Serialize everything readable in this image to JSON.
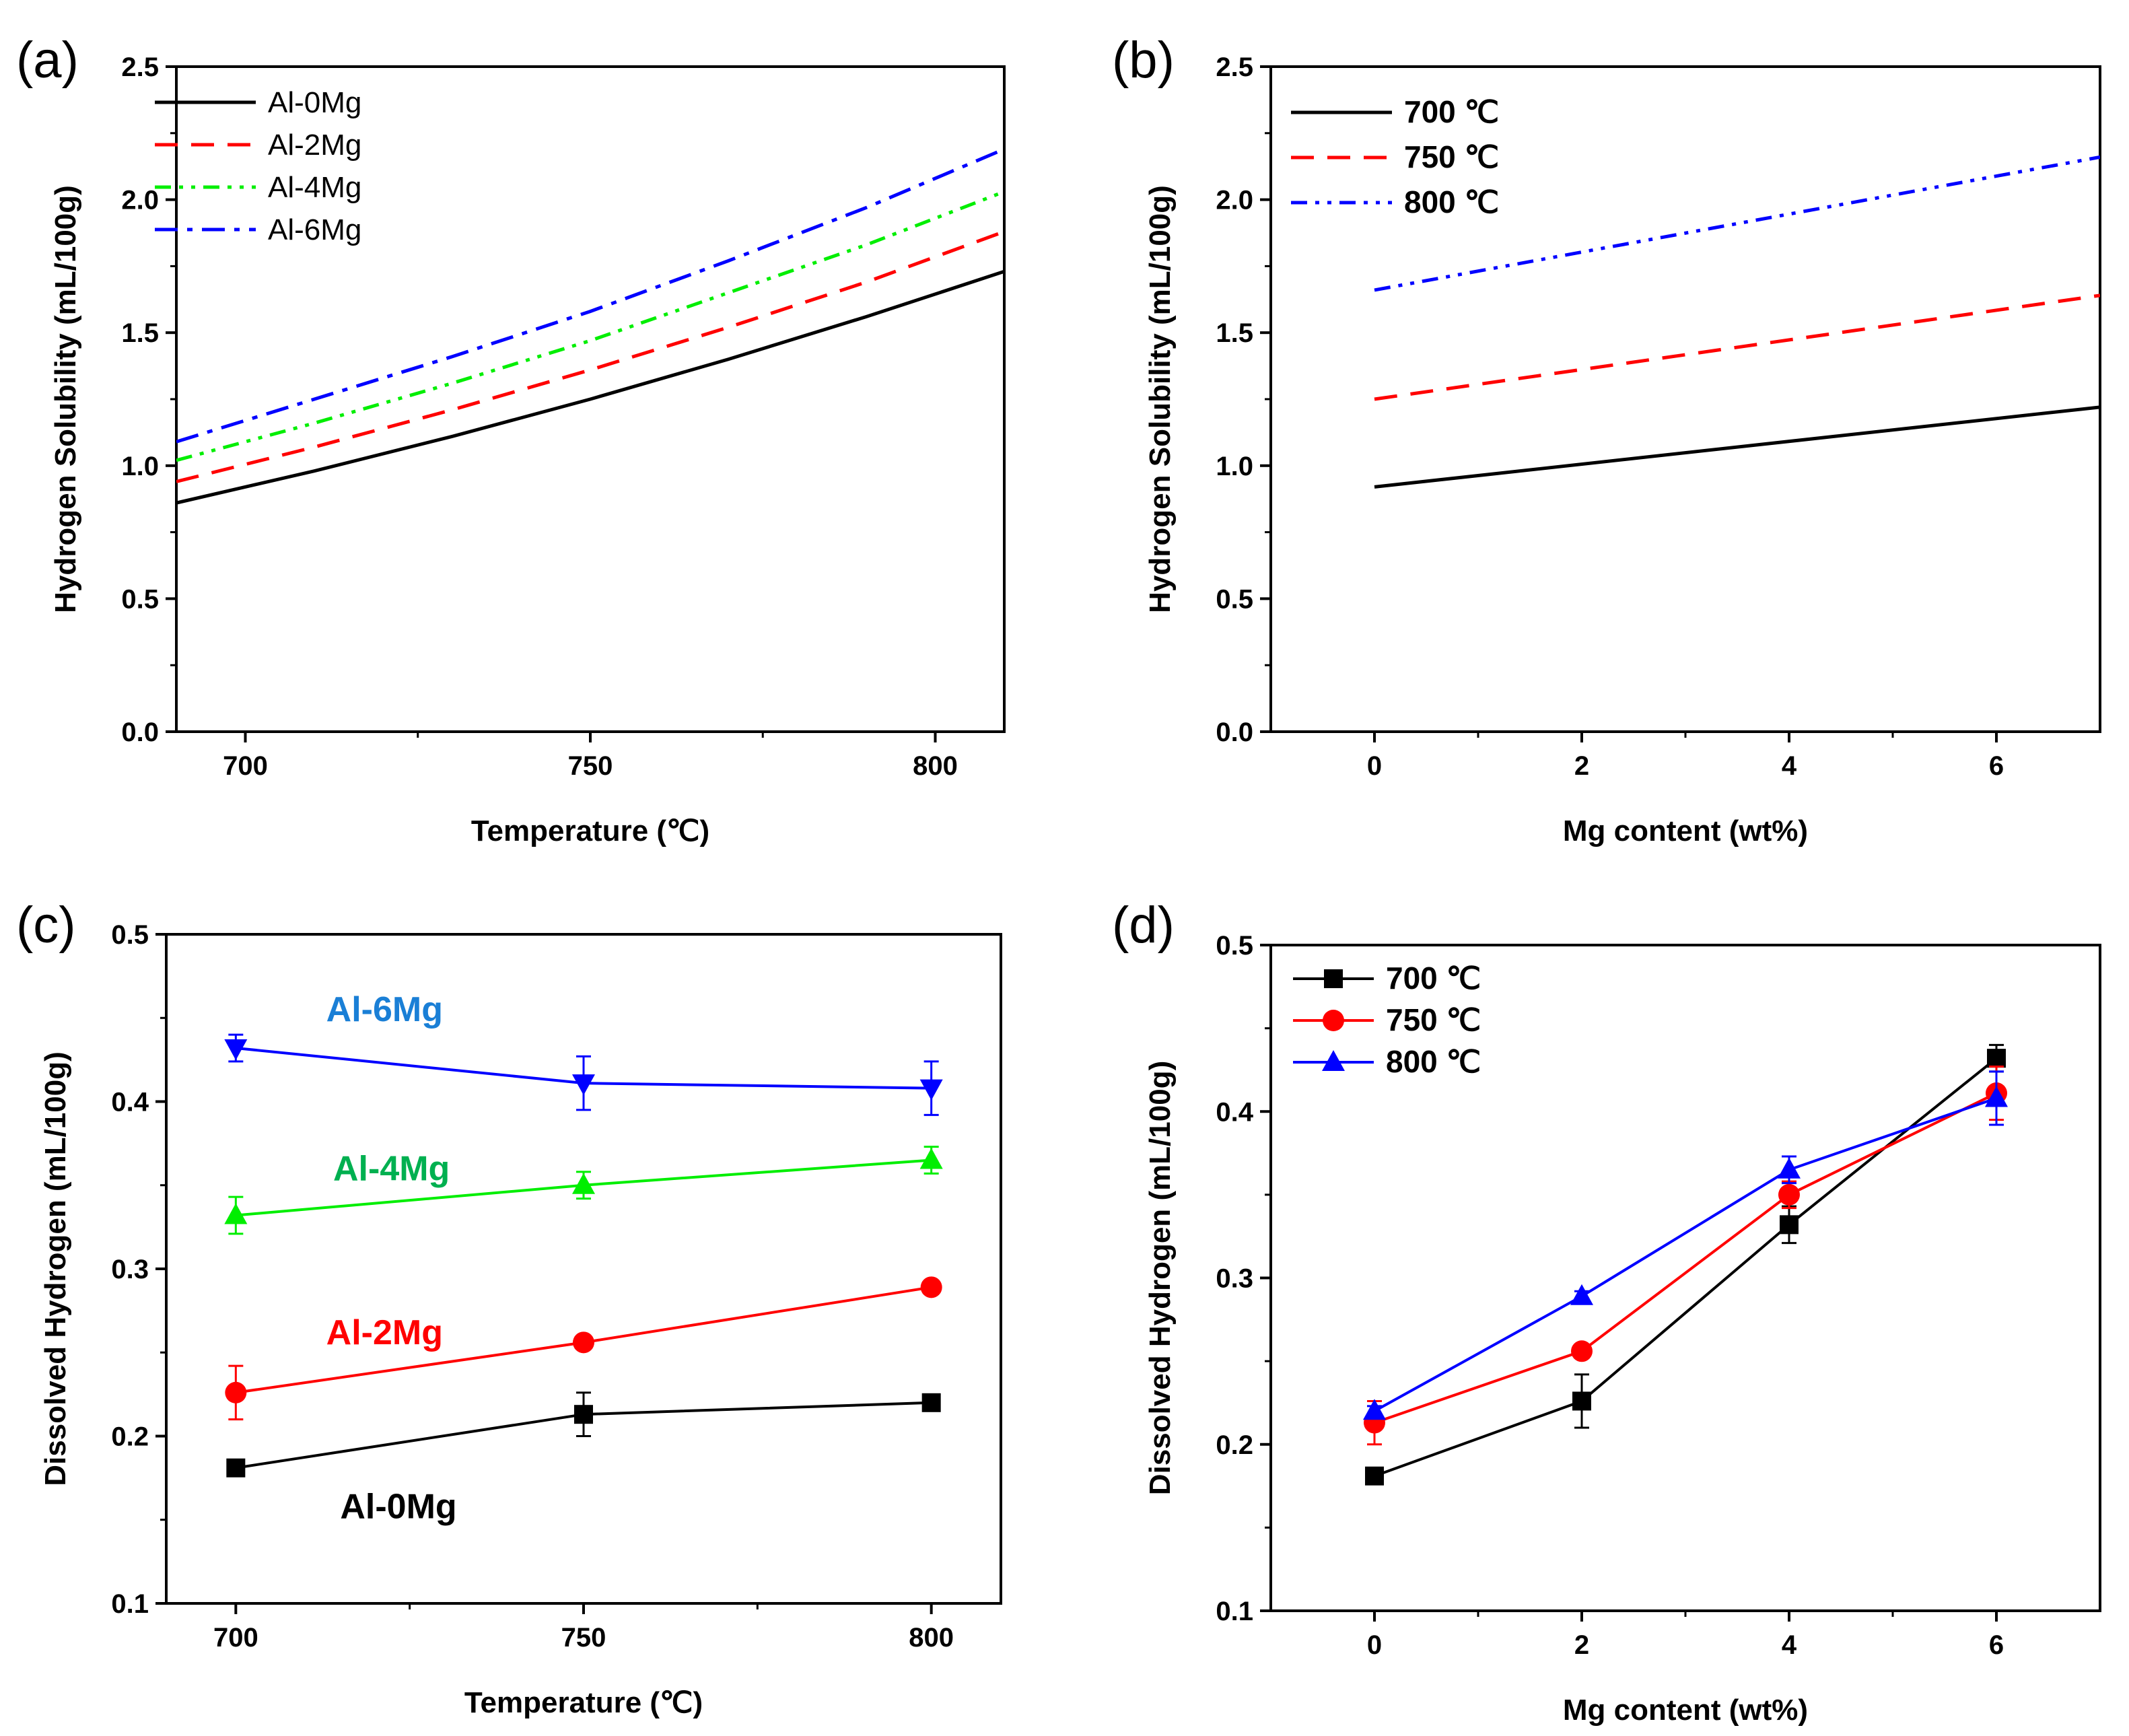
{
  "colors": {
    "al0": "#000000",
    "al2": "#ff0000",
    "al4": "#00ee00",
    "al6": "#0000ff",
    "t700": "#000000",
    "t750": "#ff0000",
    "t800": "#0000ff",
    "annot6": "#1a7fd6",
    "annot4": "#00b050",
    "annot2": "#ff0000",
    "annot0": "#000000"
  },
  "chart_data": [
    {
      "id": "a",
      "panel_label": "(a)",
      "type": "line",
      "xlabel": "Temperature (℃)",
      "ylabel": "Hydrogen Solubility (mL/100g)",
      "xlim": [
        690,
        810
      ],
      "ylim": [
        0.0,
        2.5
      ],
      "xticks": [
        700,
        750,
        800
      ],
      "yticks": [
        0.0,
        0.5,
        1.0,
        1.5,
        2.0,
        2.5
      ],
      "ytick_labels": [
        "0.0",
        "0.5",
        "1.0",
        "1.5",
        "2.0",
        "2.5"
      ],
      "legend_position": "top-left",
      "series": [
        {
          "name": "Al-0Mg",
          "x": [
            690,
            710,
            730,
            750,
            770,
            790,
            810
          ],
          "values": [
            0.86,
            0.98,
            1.11,
            1.25,
            1.4,
            1.56,
            1.73
          ],
          "color": "#000000",
          "dash": "solid"
        },
        {
          "name": "Al-2Mg",
          "x": [
            690,
            710,
            730,
            750,
            770,
            790,
            810
          ],
          "values": [
            0.94,
            1.07,
            1.21,
            1.36,
            1.52,
            1.69,
            1.88
          ],
          "color": "#ff0000",
          "dash": "dash"
        },
        {
          "name": "Al-4Mg",
          "x": [
            690,
            710,
            730,
            750,
            770,
            790,
            810
          ],
          "values": [
            1.02,
            1.16,
            1.31,
            1.47,
            1.65,
            1.83,
            2.03
          ],
          "color": "#00ee00",
          "dash": "dashdotdot"
        },
        {
          "name": "Al-6Mg",
          "x": [
            690,
            710,
            730,
            750,
            770,
            790,
            810
          ],
          "values": [
            1.09,
            1.25,
            1.41,
            1.58,
            1.77,
            1.97,
            2.19
          ],
          "color": "#0000ff",
          "dash": "dashdot"
        }
      ]
    },
    {
      "id": "b",
      "panel_label": "(b)",
      "type": "line",
      "xlabel": "Mg content (wt%)",
      "ylabel": "Hydrogen Solubility (mL/100g)",
      "xlim": [
        -1,
        7
      ],
      "ylim": [
        0.0,
        2.5
      ],
      "xticks": [
        0,
        2,
        4,
        6
      ],
      "yticks": [
        0.0,
        0.5,
        1.0,
        1.5,
        2.0,
        2.5
      ],
      "ytick_labels": [
        "0.0",
        "0.5",
        "1.0",
        "1.5",
        "2.0",
        "2.5"
      ],
      "legend_position": "top-left",
      "series": [
        {
          "name": "700 ℃",
          "x": [
            0,
            7
          ],
          "values": [
            0.92,
            1.22
          ],
          "color": "#000000",
          "dash": "solid"
        },
        {
          "name": "750 ℃",
          "x": [
            0,
            7
          ],
          "values": [
            1.25,
            1.64
          ],
          "color": "#ff0000",
          "dash": "dash"
        },
        {
          "name": "800 ℃",
          "x": [
            0,
            7
          ],
          "values": [
            1.66,
            2.16
          ],
          "color": "#0000ff",
          "dash": "dashdotdot"
        }
      ]
    },
    {
      "id": "c",
      "panel_label": "(c)",
      "type": "line",
      "xlabel": "Temperature (℃)",
      "ylabel": "Dissolved Hydrogen (mL/100g)",
      "xlim": [
        690,
        810
      ],
      "ylim": [
        0.1,
        0.5
      ],
      "xticks": [
        700,
        750,
        800
      ],
      "yticks": [
        0.1,
        0.2,
        0.3,
        0.4,
        0.5
      ],
      "ytick_labels": [
        "0.1",
        "0.2",
        "0.3",
        "0.4",
        "0.5"
      ],
      "series": [
        {
          "name": "Al-0Mg",
          "x": [
            700,
            750,
            800
          ],
          "values": [
            0.181,
            0.213,
            0.22
          ],
          "errors": [
            0.004,
            0.013,
            0.003
          ],
          "color": "#000000",
          "marker": "square"
        },
        {
          "name": "Al-2Mg",
          "x": [
            700,
            750,
            800
          ],
          "values": [
            0.226,
            0.256,
            0.289
          ],
          "errors": [
            0.016,
            0.003,
            0.003
          ],
          "color": "#ff0000",
          "marker": "circle"
        },
        {
          "name": "Al-4Mg",
          "x": [
            700,
            750,
            800
          ],
          "values": [
            0.332,
            0.35,
            0.365
          ],
          "errors": [
            0.011,
            0.008,
            0.008
          ],
          "color": "#00ee00",
          "marker": "triangle-up"
        },
        {
          "name": "Al-6Mg",
          "x": [
            700,
            750,
            800
          ],
          "values": [
            0.432,
            0.411,
            0.408
          ],
          "errors": [
            0.008,
            0.016,
            0.016
          ],
          "color": "#0000ff",
          "marker": "triangle-down"
        }
      ],
      "annotations": [
        {
          "text": "Al-6Mg",
          "x": 713,
          "y": 0.448,
          "color_key": "annot6"
        },
        {
          "text": "Al-4Mg",
          "x": 714,
          "y": 0.353,
          "color_key": "annot4"
        },
        {
          "text": "Al-2Mg",
          "x": 713,
          "y": 0.255,
          "color_key": "annot2"
        },
        {
          "text": "Al-0Mg",
          "x": 715,
          "y": 0.151,
          "color_key": "annot0"
        }
      ]
    },
    {
      "id": "d",
      "panel_label": "(d)",
      "type": "line",
      "xlabel": "Mg content (wt%)",
      "ylabel": "Dissolved Hydrogen (mL/100g)",
      "xlim": [
        -1,
        7
      ],
      "ylim": [
        0.1,
        0.5
      ],
      "xticks": [
        0,
        2,
        4,
        6
      ],
      "yticks": [
        0.1,
        0.2,
        0.3,
        0.4,
        0.5
      ],
      "ytick_labels": [
        "0.1",
        "0.2",
        "0.3",
        "0.4",
        "0.5"
      ],
      "legend_position": "top-left",
      "series": [
        {
          "name": "700 ℃",
          "x": [
            0,
            2,
            4,
            6
          ],
          "values": [
            0.181,
            0.226,
            0.332,
            0.432
          ],
          "errors": [
            0.004,
            0.016,
            0.011,
            0.008
          ],
          "color": "#000000",
          "marker": "square"
        },
        {
          "name": "750 ℃",
          "x": [
            0,
            2,
            4,
            6
          ],
          "values": [
            0.213,
            0.256,
            0.35,
            0.411
          ],
          "errors": [
            0.013,
            0.003,
            0.008,
            0.016
          ],
          "color": "#ff0000",
          "marker": "circle"
        },
        {
          "name": "800 ℃",
          "x": [
            0,
            2,
            4,
            6
          ],
          "values": [
            0.22,
            0.289,
            0.365,
            0.408
          ],
          "errors": [
            0.003,
            0.003,
            0.008,
            0.016
          ],
          "color": "#0000ff",
          "marker": "triangle-up"
        }
      ]
    }
  ]
}
